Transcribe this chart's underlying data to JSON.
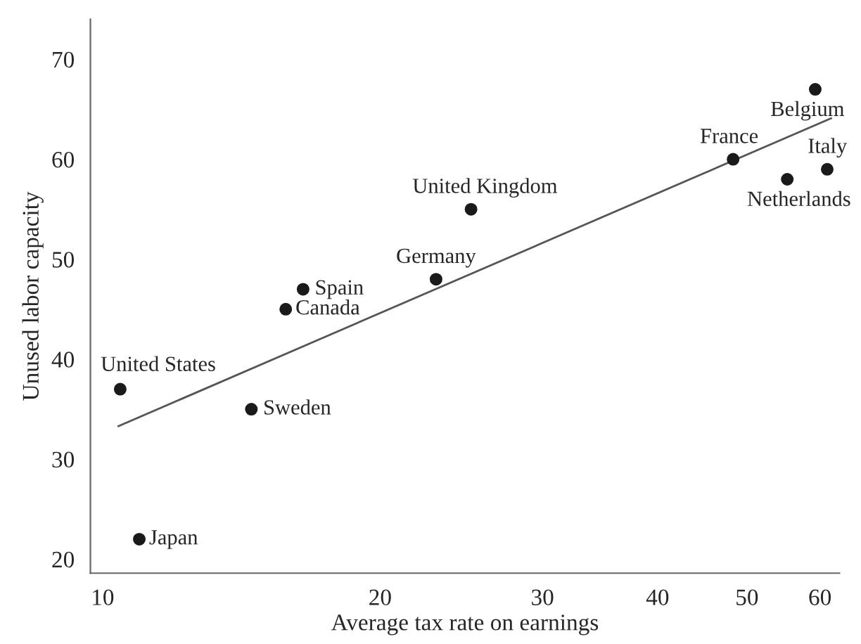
{
  "chart_data": {
    "type": "scatter",
    "xlabel": "Average tax rate on earnings",
    "ylabel": "Unused labor capacity",
    "series": [
      {
        "marker": "circle",
        "color": "#1a1a1a",
        "x": [
          10.45,
          10.96,
          14.5,
          15.8,
          16.5,
          23.0,
          25.1,
          48.3,
          55.3,
          59.3,
          61.1
        ],
        "values": [
          37,
          22,
          35,
          45,
          47,
          48,
          55,
          60,
          58,
          67,
          59
        ]
      },
      {
        "type": "line",
        "marker": "none",
        "color": "#555555",
        "x": [
          10.4,
          61.7
        ],
        "values": [
          33.3,
          64.1
        ]
      }
    ],
    "annotations": [
      {
        "text": "United States",
        "x": 10.45,
        "y": 37
      },
      {
        "text": "Japan",
        "x": 10.96,
        "y": 22
      },
      {
        "text": "Sweden",
        "x": 14.5,
        "y": 35
      },
      {
        "text": "Canada",
        "x": 15.8,
        "y": 45
      },
      {
        "text": "Spain",
        "x": 16.5,
        "y": 47
      },
      {
        "text": "Germany",
        "x": 23.0,
        "y": 48
      },
      {
        "text": "United Kingdom",
        "x": 25.1,
        "y": 55
      },
      {
        "text": "France",
        "x": 48.3,
        "y": 60
      },
      {
        "text": "Netherlands",
        "x": 55.3,
        "y": 58
      },
      {
        "text": "Belgium",
        "x": 59.3,
        "y": 67
      },
      {
        "text": "Italy",
        "x": 61.1,
        "y": 59
      }
    ],
    "log": "x",
    "xlim": [
      9.7,
      63
    ],
    "xticks": [
      10,
      20,
      30,
      40,
      50,
      60
    ],
    "ylim": [
      18.6,
      74
    ],
    "yticks": [
      20,
      30,
      40,
      50,
      60,
      70
    ],
    "grid": false,
    "legend": false
  }
}
